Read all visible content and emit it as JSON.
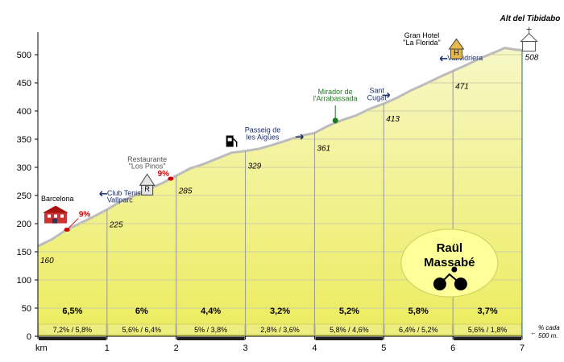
{
  "chart_data": {
    "type": "area",
    "title": "Alt del Tibidabo",
    "xlabel": "km",
    "ylabel": "",
    "xlim": [
      0,
      7
    ],
    "ylim": [
      0,
      540
    ],
    "x_ticks": [
      "1",
      "2",
      "3",
      "4",
      "5",
      "6",
      "7"
    ],
    "y_ticks": [
      "0",
      "50",
      "100",
      "150",
      "200",
      "250",
      "300",
      "350",
      "400",
      "450",
      "500"
    ],
    "profile": [
      [
        0,
        160
      ],
      [
        0.2,
        172
      ],
      [
        0.4,
        188
      ],
      [
        0.6,
        200
      ],
      [
        0.8,
        212
      ],
      [
        1.0,
        225
      ],
      [
        1.2,
        240
      ],
      [
        1.4,
        250
      ],
      [
        1.6,
        262
      ],
      [
        1.8,
        272
      ],
      [
        2.0,
        285
      ],
      [
        2.2,
        298
      ],
      [
        2.4,
        306
      ],
      [
        2.6,
        316
      ],
      [
        2.8,
        326
      ],
      [
        3.0,
        329
      ],
      [
        3.2,
        333
      ],
      [
        3.4,
        340
      ],
      [
        3.6,
        348
      ],
      [
        3.8,
        356
      ],
      [
        4.0,
        361
      ],
      [
        4.2,
        374
      ],
      [
        4.4,
        384
      ],
      [
        4.6,
        392
      ],
      [
        4.8,
        404
      ],
      [
        5.0,
        413
      ],
      [
        5.2,
        424
      ],
      [
        5.4,
        437
      ],
      [
        5.6,
        448
      ],
      [
        5.8,
        460
      ],
      [
        6.0,
        471
      ],
      [
        6.2,
        482
      ],
      [
        6.4,
        494
      ],
      [
        6.6,
        504
      ],
      [
        6.75,
        512
      ],
      [
        6.9,
        509
      ],
      [
        7.0,
        508
      ]
    ],
    "km_elevations": [
      {
        "km": 0,
        "label": "160"
      },
      {
        "km": 1,
        "label": "225"
      },
      {
        "km": 2,
        "label": "285"
      },
      {
        "km": 3,
        "label": "329"
      },
      {
        "km": 4,
        "label": "361"
      },
      {
        "km": 5,
        "label": "413"
      },
      {
        "km": 6,
        "label": "471"
      },
      {
        "km": 7,
        "label": "508"
      }
    ],
    "segment_gradients": [
      "6,5%",
      "6%",
      "4,4%",
      "3,2%",
      "5,2%",
      "5,8%",
      "3,7%"
    ],
    "half_km_gradients": [
      "7,2%  /  5,8%",
      "5,6%  /  6,4%",
      "5%  /  3,8%",
      "2,8%  /  3,6%",
      "5,8%  /  4,6%",
      "6,4%  /  5,2%",
      "5,6%  /  1,8%"
    ],
    "gradient_note": [
      "% cada",
      "500 m."
    ],
    "points_of_interest": [
      {
        "km": 0.38,
        "elev": 190,
        "lines": [
          "Barcelona"
        ],
        "icon": "town-icon"
      },
      {
        "km": 0.95,
        "elev": 245,
        "lines": [
          "Club Tenis",
          "Vallparc"
        ],
        "icon": "arrow-left-icon"
      },
      {
        "km": 1.35,
        "elev": 300,
        "lines": [
          "Restaurante",
          "\"Los Pinos\""
        ],
        "icon": "restaurant-icon"
      },
      {
        "km": 3.2,
        "elev": 345,
        "lines": [
          "Passeig de",
          "les Aigües"
        ],
        "icon": "arrow-right-icon"
      },
      {
        "km": 4.3,
        "elev": 383,
        "lines": [
          "Mirador de",
          "l'Arrabassada"
        ],
        "icon": "viewpoint-icon"
      },
      {
        "km": 4.95,
        "elev": 425,
        "lines": [
          "Sant",
          "Cugat"
        ],
        "icon": "arrow-right-icon"
      },
      {
        "km": 5.95,
        "elev": 485,
        "lines": [
          "Vallvidriera"
        ],
        "icon": "arrow-left-icon"
      },
      {
        "km": 5.85,
        "elev": 520,
        "lines": [
          "Gran Hotel",
          "\"La Florida\""
        ],
        "icon": "hotel-icon"
      }
    ],
    "steep_markers": [
      {
        "km": 0.42,
        "elev": 190,
        "label": "9%"
      },
      {
        "km": 1.92,
        "elev": 280,
        "label": "9%"
      }
    ],
    "rider": [
      "Raül",
      "Massabé"
    ],
    "colors": {
      "fill_top": "#f7f7c6",
      "fill_bottom": "#ecec5e",
      "profile_line": "#bcbcbc",
      "gradient_band": "#eeee80",
      "red": "#d00000",
      "navy": "#1a2d6b",
      "green": "#1c7a1c",
      "rider_bubble": "#ffff99"
    }
  }
}
